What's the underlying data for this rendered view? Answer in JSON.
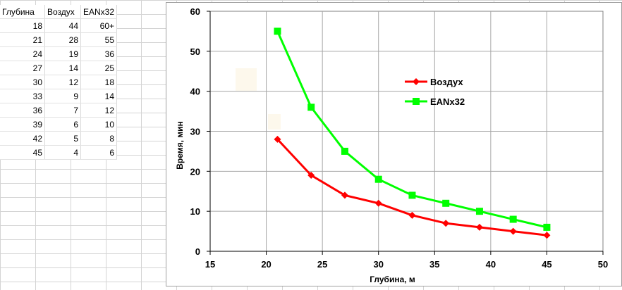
{
  "table": {
    "headers": [
      "Глубина",
      "Воздух",
      "EANx32"
    ],
    "rows": [
      [
        "18",
        "44",
        "60+"
      ],
      [
        "21",
        "28",
        "55"
      ],
      [
        "24",
        "19",
        "36"
      ],
      [
        "27",
        "14",
        "25"
      ],
      [
        "30",
        "12",
        "18"
      ],
      [
        "33",
        "9",
        "14"
      ],
      [
        "36",
        "7",
        "12"
      ],
      [
        "39",
        "6",
        "10"
      ],
      [
        "42",
        "5",
        "8"
      ],
      [
        "45",
        "4",
        "6"
      ]
    ]
  },
  "chart_data": {
    "type": "line",
    "title": "",
    "xlabel": "Глубина, м",
    "ylabel": "Время, мин",
    "xlim": [
      15,
      50
    ],
    "ylim": [
      0,
      60
    ],
    "xticks": [
      15,
      20,
      25,
      30,
      35,
      40,
      45,
      50
    ],
    "yticks": [
      0,
      10,
      20,
      30,
      40,
      50,
      60
    ],
    "grid": true,
    "legend": "top-right",
    "x": [
      21,
      24,
      27,
      30,
      33,
      36,
      39,
      42,
      45
    ],
    "series": [
      {
        "name": "Воздух",
        "color": "#ff0000",
        "marker": "diamond",
        "values": [
          28,
          19,
          14,
          12,
          9,
          7,
          6,
          5,
          4
        ]
      },
      {
        "name": "EANx32",
        "color": "#00ff00",
        "marker": "square",
        "values": [
          55,
          36,
          25,
          18,
          14,
          12,
          10,
          8,
          6
        ]
      }
    ]
  }
}
